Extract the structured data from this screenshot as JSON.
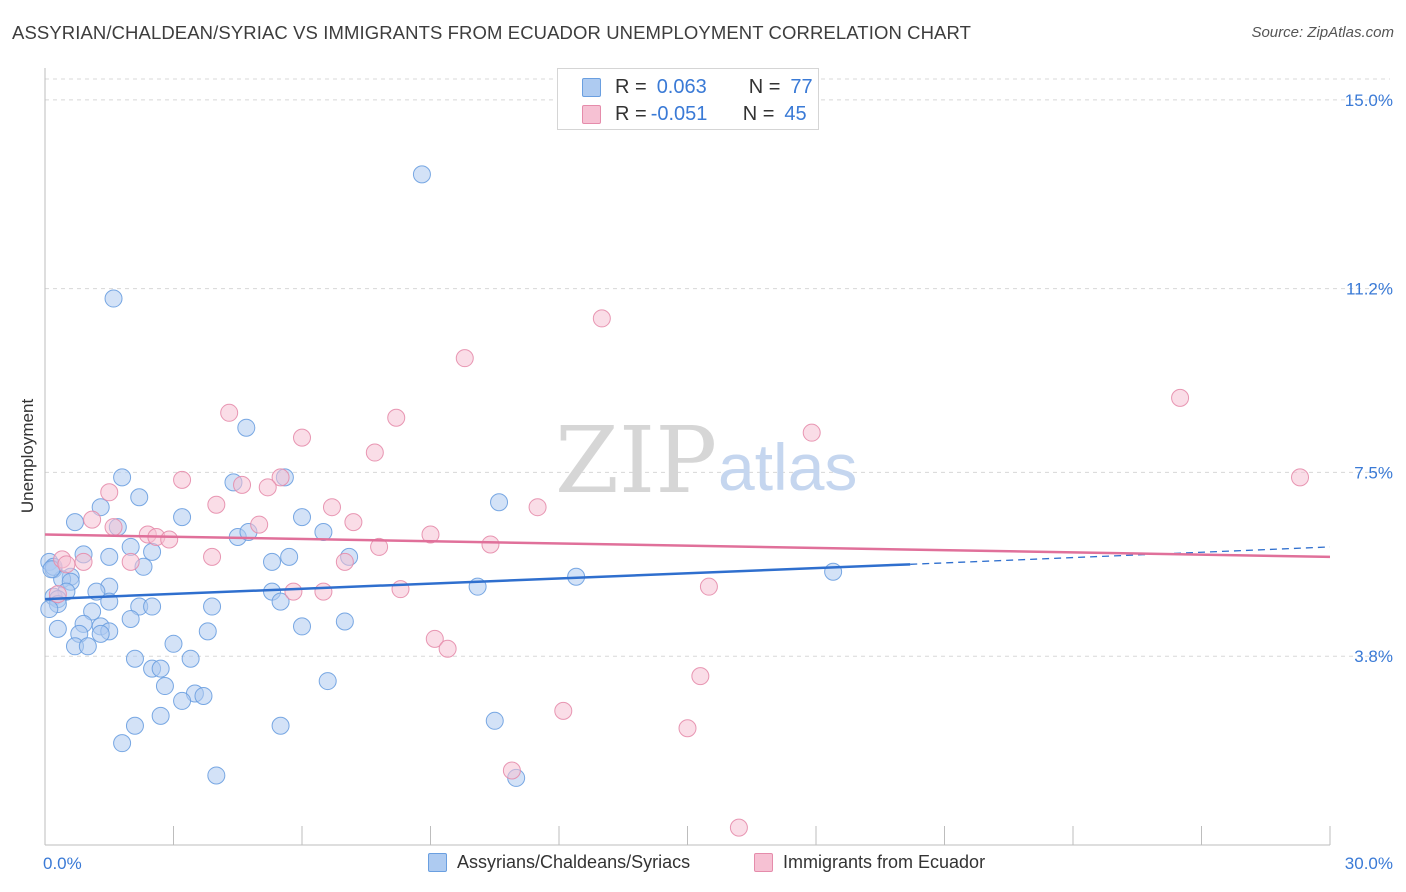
{
  "title": "ASSYRIAN/CHALDEAN/SYRIAC VS IMMIGRANTS FROM ECUADOR UNEMPLOYMENT CORRELATION CHART",
  "source": "Source: ZipAtlas.com",
  "watermark": {
    "zip": "ZIP",
    "atlas": "atlas"
  },
  "legend_top": [
    {
      "r_label": "R =",
      "r_value": "0.063",
      "n_label": "N =",
      "n_value": "77"
    },
    {
      "r_label": "R =",
      "r_value": "-0.051",
      "n_label": "N =",
      "n_value": "45"
    }
  ],
  "colors": {
    "blue_fill": "#aecbf1",
    "blue_stroke": "#6a9fe0",
    "blue_line": "#2f6fce",
    "pink_fill": "#f6c1d3",
    "pink_stroke": "#e58cab",
    "pink_line": "#e0709a",
    "grid": "#d8d8d8",
    "axis_label": "#3a7ad6"
  },
  "chart_data": {
    "type": "scatter",
    "title": "ASSYRIAN/CHALDEAN/SYRIAC VS IMMIGRANTS FROM ECUADOR UNEMPLOYMENT CORRELATION CHART",
    "xlabel": "",
    "ylabel": "Unemployment",
    "xlim": [
      0,
      30
    ],
    "ylim": [
      0,
      15.5
    ],
    "x_tick_labels": [
      "0.0%",
      "30.0%"
    ],
    "y_ticks": [
      3.8,
      7.5,
      11.2,
      15.0
    ],
    "y_tick_labels": [
      "3.8%",
      "7.5%",
      "11.2%",
      "15.0%"
    ],
    "grid": "horizontal dashed",
    "legend_position": "top-center",
    "series": [
      {
        "name": "Assyrians/Chaldeans/Syriacs",
        "color": "blue",
        "r": 0.063,
        "n": 77,
        "trend": {
          "x0": 0,
          "y0": 4.95,
          "x1": 20.2,
          "y1": 5.65,
          "dash_to_x": 30,
          "dash_to_y": 6.0
        },
        "points": [
          [
            8.8,
            13.5
          ],
          [
            1.6,
            11.0
          ],
          [
            4.7,
            8.4
          ],
          [
            1.8,
            7.4
          ],
          [
            5.6,
            7.4
          ],
          [
            4.4,
            7.3
          ],
          [
            2.2,
            7.0
          ],
          [
            10.6,
            6.9
          ],
          [
            1.3,
            6.8
          ],
          [
            3.2,
            6.6
          ],
          [
            6.0,
            6.6
          ],
          [
            0.7,
            6.5
          ],
          [
            1.7,
            6.4
          ],
          [
            6.5,
            6.3
          ],
          [
            4.5,
            6.2
          ],
          [
            2.0,
            6.0
          ],
          [
            2.5,
            5.9
          ],
          [
            0.9,
            5.85
          ],
          [
            1.5,
            5.8
          ],
          [
            5.7,
            5.8
          ],
          [
            7.1,
            5.8
          ],
          [
            5.3,
            5.7
          ],
          [
            0.1,
            5.7
          ],
          [
            2.3,
            5.6
          ],
          [
            0.2,
            5.55
          ],
          [
            0.6,
            5.4
          ],
          [
            0.4,
            5.35
          ],
          [
            0.6,
            5.3
          ],
          [
            1.5,
            5.2
          ],
          [
            10.1,
            5.2
          ],
          [
            5.3,
            5.1
          ],
          [
            0.5,
            5.1
          ],
          [
            1.2,
            5.1
          ],
          [
            0.2,
            5.0
          ],
          [
            0.3,
            4.95
          ],
          [
            5.5,
            4.9
          ],
          [
            1.5,
            4.9
          ],
          [
            0.3,
            4.85
          ],
          [
            2.2,
            4.8
          ],
          [
            2.5,
            4.8
          ],
          [
            3.9,
            4.8
          ],
          [
            0.1,
            4.75
          ],
          [
            1.1,
            4.7
          ],
          [
            2.0,
            4.55
          ],
          [
            7.0,
            4.5
          ],
          [
            0.9,
            4.45
          ],
          [
            1.3,
            4.4
          ],
          [
            0.3,
            4.35
          ],
          [
            3.8,
            4.3
          ],
          [
            1.5,
            4.3
          ],
          [
            1.3,
            4.25
          ],
          [
            0.8,
            4.25
          ],
          [
            6.0,
            4.4
          ],
          [
            0.7,
            4.0
          ],
          [
            1.0,
            4.0
          ],
          [
            3.0,
            4.05
          ],
          [
            2.1,
            3.75
          ],
          [
            3.4,
            3.75
          ],
          [
            2.5,
            3.55
          ],
          [
            2.7,
            3.55
          ],
          [
            6.6,
            3.3
          ],
          [
            2.8,
            3.2
          ],
          [
            3.5,
            3.05
          ],
          [
            3.7,
            3.0
          ],
          [
            3.2,
            2.9
          ],
          [
            2.7,
            2.6
          ],
          [
            2.1,
            2.4
          ],
          [
            5.5,
            2.4
          ],
          [
            10.5,
            2.5
          ],
          [
            1.8,
            2.05
          ],
          [
            4.0,
            1.4
          ],
          [
            11.0,
            1.35
          ],
          [
            18.4,
            5.5
          ],
          [
            12.4,
            5.4
          ],
          [
            0.2,
            5.6
          ],
          [
            0.15,
            5.55
          ],
          [
            4.75,
            6.3
          ]
        ]
      },
      {
        "name": "Immigrants from Ecuador",
        "color": "pink",
        "r": -0.051,
        "n": 45,
        "trend": {
          "x0": 0,
          "y0": 6.25,
          "x1": 30,
          "y1": 5.8
        },
        "points": [
          [
            13.0,
            10.6
          ],
          [
            9.8,
            9.8
          ],
          [
            26.5,
            9.0
          ],
          [
            4.3,
            8.7
          ],
          [
            8.2,
            8.6
          ],
          [
            17.9,
            8.3
          ],
          [
            6.0,
            8.2
          ],
          [
            7.7,
            7.9
          ],
          [
            29.3,
            7.4
          ],
          [
            3.2,
            7.35
          ],
          [
            5.5,
            7.4
          ],
          [
            4.6,
            7.25
          ],
          [
            5.2,
            7.2
          ],
          [
            1.5,
            7.1
          ],
          [
            4.0,
            6.85
          ],
          [
            6.7,
            6.8
          ],
          [
            11.5,
            6.8
          ],
          [
            1.1,
            6.55
          ],
          [
            7.2,
            6.5
          ],
          [
            1.6,
            6.4
          ],
          [
            5.0,
            6.45
          ],
          [
            9.0,
            6.25
          ],
          [
            2.4,
            6.25
          ],
          [
            2.6,
            6.2
          ],
          [
            2.9,
            6.15
          ],
          [
            10.4,
            6.05
          ],
          [
            7.8,
            6.0
          ],
          [
            3.9,
            5.8
          ],
          [
            0.4,
            5.75
          ],
          [
            2.0,
            5.7
          ],
          [
            0.5,
            5.65
          ],
          [
            7.0,
            5.7
          ],
          [
            0.9,
            5.7
          ],
          [
            15.5,
            5.2
          ],
          [
            8.3,
            5.15
          ],
          [
            5.8,
            5.1
          ],
          [
            6.5,
            5.1
          ],
          [
            0.3,
            5.05
          ],
          [
            9.1,
            4.15
          ],
          [
            9.4,
            3.95
          ],
          [
            15.3,
            3.4
          ],
          [
            12.1,
            2.7
          ],
          [
            15.0,
            2.35
          ],
          [
            10.9,
            1.5
          ],
          [
            16.2,
            0.35
          ]
        ]
      }
    ]
  },
  "legend_bottom": [
    {
      "label": "Assyrians/Chaldeans/Syriacs"
    },
    {
      "label": "Immigrants from Ecuador"
    }
  ]
}
